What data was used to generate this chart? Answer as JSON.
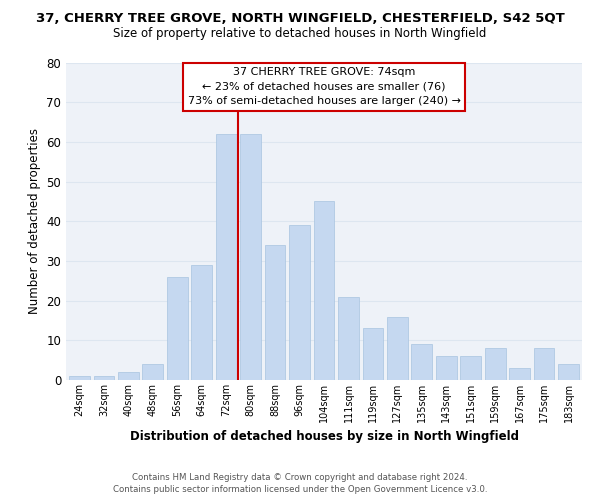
{
  "title": "37, CHERRY TREE GROVE, NORTH WINGFIELD, CHESTERFIELD, S42 5QT",
  "subtitle": "Size of property relative to detached houses in North Wingfield",
  "xlabel": "Distribution of detached houses by size in North Wingfield",
  "ylabel": "Number of detached properties",
  "bar_labels": [
    "24sqm",
    "32sqm",
    "40sqm",
    "48sqm",
    "56sqm",
    "64sqm",
    "72sqm",
    "80sqm",
    "88sqm",
    "96sqm",
    "104sqm",
    "111sqm",
    "119sqm",
    "127sqm",
    "135sqm",
    "143sqm",
    "151sqm",
    "159sqm",
    "167sqm",
    "175sqm",
    "183sqm"
  ],
  "bar_heights": [
    1,
    1,
    2,
    4,
    26,
    29,
    62,
    62,
    34,
    39,
    45,
    21,
    13,
    16,
    9,
    6,
    6,
    8,
    3,
    8,
    4
  ],
  "bar_color": "#c5d8f0",
  "bar_edge_color": "#a8c4e0",
  "vline_color": "#cc0000",
  "annotation_title": "37 CHERRY TREE GROVE: 74sqm",
  "annotation_line1": "← 23% of detached houses are smaller (76)",
  "annotation_line2": "73% of semi-detached houses are larger (240) →",
  "annotation_box_color": "#ffffff",
  "annotation_box_edge": "#cc0000",
  "grid_color": "#dde6f0",
  "bg_color": "#eef2f8",
  "ylim": [
    0,
    80
  ],
  "yticks": [
    0,
    10,
    20,
    30,
    40,
    50,
    60,
    70,
    80
  ],
  "footer1": "Contains HM Land Registry data © Crown copyright and database right 2024.",
  "footer2": "Contains public sector information licensed under the Open Government Licence v3.0."
}
